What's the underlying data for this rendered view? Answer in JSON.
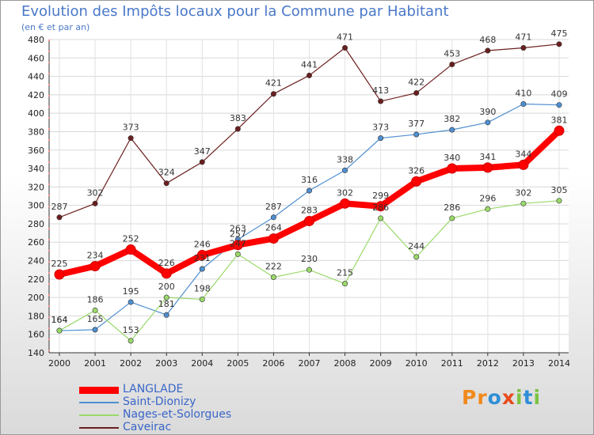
{
  "chart_data": {
    "type": "line",
    "title": "Evolution des Impôts locaux pour la Commune par Habitant",
    "subtitle": "(en € et par an)",
    "xlabel": "",
    "ylabel": "",
    "x": [
      "2000",
      "2001",
      "2002",
      "2003",
      "2004",
      "2005",
      "2006",
      "2007",
      "2008",
      "2009",
      "2010",
      "2011",
      "2012",
      "2013",
      "2014"
    ],
    "yticks": [
      140,
      160,
      180,
      200,
      220,
      240,
      260,
      280,
      300,
      320,
      340,
      360,
      380,
      400,
      420,
      440,
      460,
      480
    ],
    "ylim": [
      140,
      480
    ],
    "grid": true,
    "legend_position": "bottom-left",
    "series": [
      {
        "name": "Caveirac",
        "color": "#6b1e1e",
        "values": [
          287,
          302,
          373,
          324,
          347,
          383,
          421,
          441,
          471,
          413,
          422,
          453,
          468,
          471,
          475
        ]
      },
      {
        "name": "Saint-Dionizy",
        "color": "#4f8fd0",
        "values": [
          164,
          165,
          195,
          181,
          231,
          263,
          287,
          316,
          338,
          373,
          377,
          382,
          390,
          410,
          409
        ]
      },
      {
        "name": "Nages-et-Solorgues",
        "color": "#9ad96a",
        "values": [
          164,
          186,
          153,
          200,
          198,
          247,
          222,
          230,
          215,
          286,
          244,
          286,
          296,
          302,
          305
        ]
      },
      {
        "name": "LANGLADE",
        "color": "#ff0000",
        "values": [
          225,
          234,
          252,
          226,
          246,
          257,
          264,
          283,
          302,
          299,
          326,
          340,
          341,
          344,
          381
        ]
      }
    ]
  },
  "legend": [
    "LANGLADE",
    "Saint-Dionizy",
    "Nages-et-Solorgues",
    "Caveirac"
  ],
  "logo": {
    "text": "Proxiti",
    "letters": [
      "P",
      "r",
      "o",
      "x",
      "i",
      "t",
      "i"
    ],
    "colors": [
      "#f08a1c",
      "#f08a1c",
      "#2f8fd6",
      "#e84b1c",
      "#7cc243",
      "#2f8fd6",
      "#7cc243"
    ]
  }
}
